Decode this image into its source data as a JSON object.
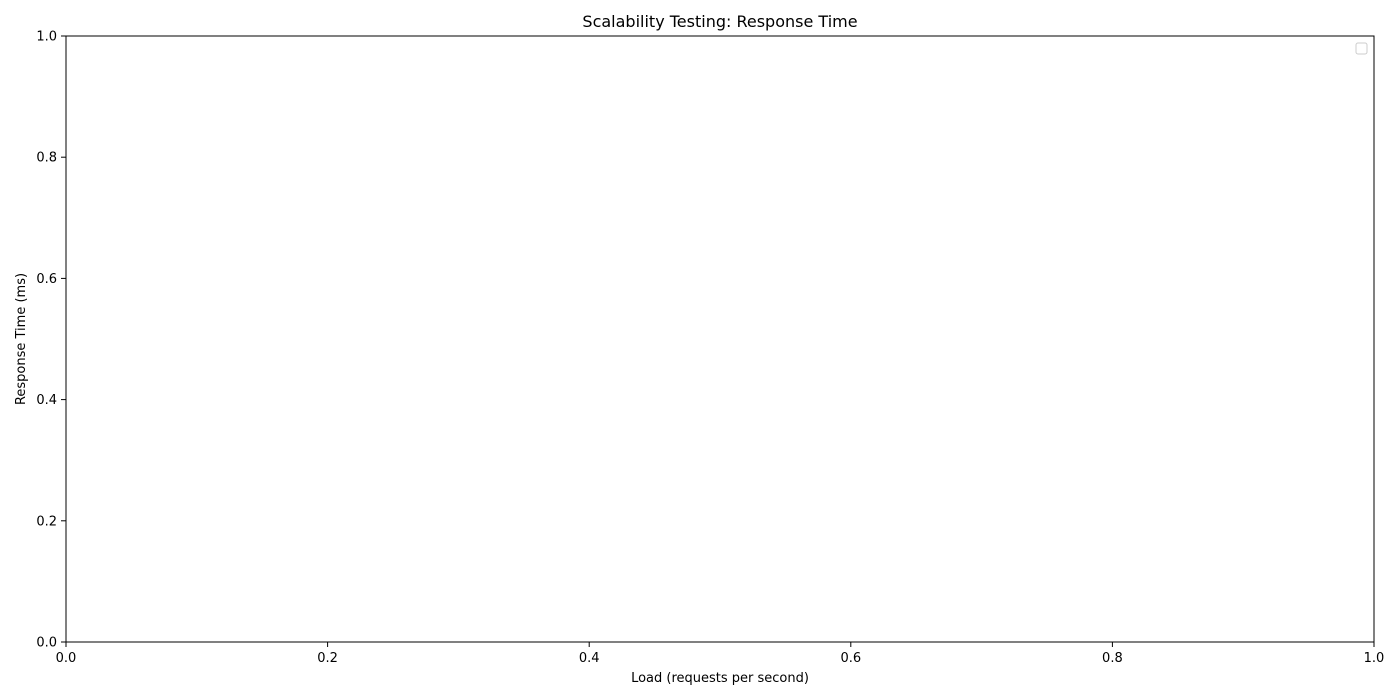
{
  "chart_data": {
    "type": "line",
    "title": "Scalability Testing: Response Time",
    "xlabel": "Load (requests per second)",
    "ylabel": "Response Time (ms)",
    "xlim": [
      0,
      1
    ],
    "ylim": [
      0,
      1
    ],
    "xticks": [
      0.0,
      0.2,
      0.4,
      0.6,
      0.8,
      1.0
    ],
    "xtick_labels": [
      "0.0",
      "0.2",
      "0.4",
      "0.6",
      "0.8",
      "1.0"
    ],
    "yticks": [
      0.0,
      0.2,
      0.4,
      0.6,
      0.8,
      1.0
    ],
    "ytick_labels": [
      "0.0",
      "0.2",
      "0.4",
      "0.6",
      "0.8",
      "1.0"
    ],
    "series": [],
    "grid": false,
    "legend": {
      "placement": "top-right",
      "entries": []
    }
  }
}
